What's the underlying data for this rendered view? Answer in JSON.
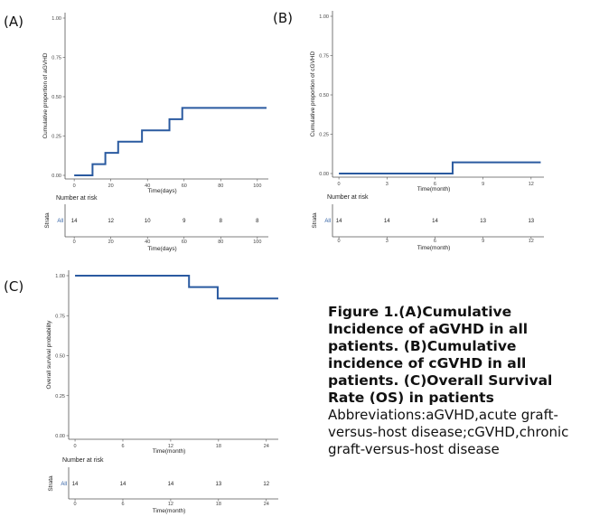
{
  "caption": {
    "bold": "Figure 1.(A)Cumulative Incidence of  aGVHD in all patients. (B)Cumulative incidence of  cGVHD in all patients. (C)Overall Survival Rate (OS) in patients",
    "abbreviations": "Abbreviations:aGVHD,acute graft-versus-host disease;cGVHD,chronic graft-versus-host disease"
  },
  "colors": {
    "line": "#2a5aa0",
    "axis": "#555555"
  },
  "chart_data": [
    {
      "panel": "(A)",
      "type": "line",
      "step": true,
      "title": "",
      "xlabel": "Time(days)",
      "ylabel": "Cumulative proportion of aGVHD",
      "xlim": [
        -5,
        106
      ],
      "ylim": [
        0,
        1
      ],
      "xticks": [
        0,
        20,
        40,
        60,
        80,
        100
      ],
      "yticks": [
        "0.00",
        "0.25",
        "0.50",
        "0.75",
        "1.00"
      ],
      "grid": false,
      "x": [
        0,
        10,
        17,
        24,
        37,
        52,
        59,
        105
      ],
      "y": [
        0.0,
        0.071,
        0.143,
        0.214,
        0.286,
        0.357,
        0.429,
        0.429
      ],
      "risk_table": {
        "title": "Number at risk",
        "strata_label": "Strata",
        "stratum": "All",
        "x": [
          0,
          20,
          40,
          60,
          80,
          100
        ],
        "values": [
          14,
          12,
          10,
          9,
          8,
          8
        ],
        "xlabel": "Time(days)"
      }
    },
    {
      "panel": "(B)",
      "type": "line",
      "step": true,
      "title": "",
      "xlabel": "Time(month)",
      "ylabel": "Cumulative proportion of cGVHD",
      "xlim": [
        -0.4,
        12.8
      ],
      "ylim": [
        0,
        1
      ],
      "xticks": [
        0,
        3,
        6,
        9,
        12
      ],
      "yticks": [
        "0.00",
        "0.25",
        "0.50",
        "0.75",
        "1.00"
      ],
      "grid": false,
      "x": [
        0,
        7.1,
        12.6
      ],
      "y": [
        0.0,
        0.071,
        0.071
      ],
      "risk_table": {
        "title": "Number at risk",
        "strata_label": "Strata",
        "stratum": "All",
        "x": [
          0,
          3,
          6,
          9,
          12
        ],
        "values": [
          14,
          14,
          14,
          13,
          13
        ],
        "xlabel": "Time(month)"
      }
    },
    {
      "panel": "(C)",
      "type": "line",
      "step": true,
      "title": "",
      "xlabel": "Time(month)",
      "ylabel": "Overall survival probability",
      "xlim": [
        -0.8,
        25.5
      ],
      "ylim": [
        0,
        1
      ],
      "xticks": [
        0,
        6,
        12,
        18,
        24
      ],
      "yticks": [
        "0.00",
        "0.25",
        "0.50",
        "0.75",
        "1.00"
      ],
      "grid": false,
      "x": [
        0,
        14.3,
        17.9,
        25.5
      ],
      "y": [
        1.0,
        0.929,
        0.857,
        0.857
      ],
      "risk_table": {
        "title": "Number at risk",
        "strata_label": "Strata",
        "stratum": "All",
        "x": [
          0,
          6,
          12,
          18,
          24
        ],
        "values": [
          14,
          14,
          14,
          13,
          12
        ],
        "xlabel": "Time(month)"
      }
    }
  ]
}
